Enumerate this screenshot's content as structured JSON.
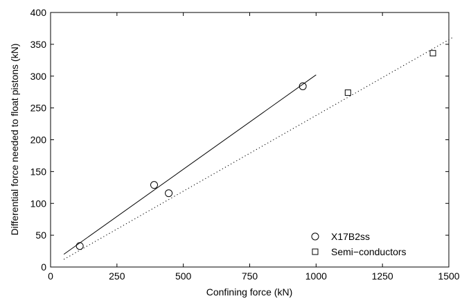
{
  "chart_data": {
    "type": "scatter",
    "title": "",
    "xlabel": "Confining force (kN)",
    "ylabel": "Differential force needed to float pistons (kN)",
    "xlim": [
      0,
      1500
    ],
    "ylim": [
      0,
      400
    ],
    "xticks": [
      0,
      250,
      500,
      750,
      1000,
      1250,
      1500
    ],
    "yticks": [
      0,
      50,
      100,
      150,
      200,
      250,
      300,
      350,
      400
    ],
    "grid": false,
    "legend_position": "bottom-right",
    "series": [
      {
        "name": "X17B2ss",
        "marker": "circle",
        "points": [
          [
            110,
            33
          ],
          [
            390,
            129
          ],
          [
            445,
            116
          ],
          [
            950,
            284
          ]
        ],
        "fit": {
          "style": "solid",
          "x": [
            50,
            1000
          ],
          "y": [
            20,
            302
          ]
        }
      },
      {
        "name": "Semi−conductors",
        "marker": "square",
        "points": [
          [
            1120,
            274
          ],
          [
            1440,
            336
          ]
        ],
        "fit": {
          "style": "dotted",
          "x": [
            50,
            1520
          ],
          "y": [
            12,
            362
          ]
        }
      }
    ]
  }
}
